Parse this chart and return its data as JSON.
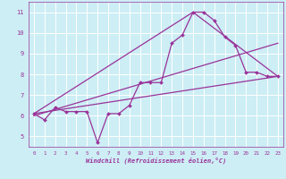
{
  "xlabel": "Windchill (Refroidissement éolien,°C)",
  "bg_color": "#cdeef5",
  "line_color": "#993399",
  "grid_color": "#ffffff",
  "xlim": [
    -0.5,
    23.5
  ],
  "ylim": [
    4.5,
    11.5
  ],
  "xticks": [
    0,
    1,
    2,
    3,
    4,
    5,
    6,
    7,
    8,
    9,
    10,
    11,
    12,
    13,
    14,
    15,
    16,
    17,
    18,
    19,
    20,
    21,
    22,
    23
  ],
  "yticks": [
    5,
    6,
    7,
    8,
    9,
    10,
    11
  ],
  "series1_x": [
    0,
    1,
    2,
    3,
    4,
    5,
    6,
    7,
    8,
    9,
    10,
    11,
    12,
    13,
    14,
    15,
    16,
    17,
    18,
    19,
    20,
    21,
    22,
    23
  ],
  "series1_y": [
    6.1,
    5.8,
    6.4,
    6.2,
    6.2,
    6.2,
    4.7,
    6.1,
    6.1,
    6.5,
    7.6,
    7.6,
    7.6,
    9.5,
    9.9,
    11.0,
    11.0,
    10.6,
    9.8,
    9.4,
    8.1,
    8.1,
    7.9,
    7.9
  ],
  "series2_x": [
    0,
    23
  ],
  "series2_y": [
    6.1,
    7.9
  ],
  "series3_x": [
    0,
    15,
    23
  ],
  "series3_y": [
    6.1,
    11.0,
    7.9
  ],
  "series4_x": [
    0,
    23
  ],
  "series4_y": [
    6.0,
    9.5
  ]
}
